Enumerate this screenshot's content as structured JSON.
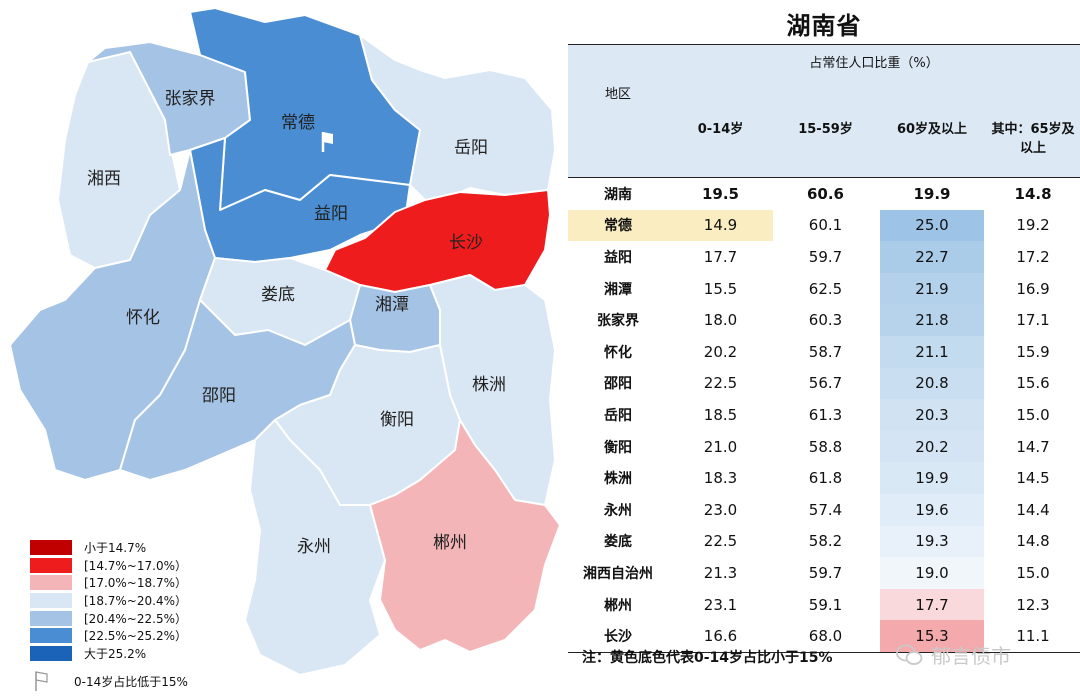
{
  "title": "湖南省",
  "header": {
    "group_label": "占常住人口比重（%）",
    "region_label": "地区",
    "col_0_14": "0-14岁",
    "col_15_59": "15-59岁",
    "col_60": "60岁及以上",
    "col_65_line1": "其中：65岁及",
    "col_65_line2": "以上"
  },
  "rows": [
    {
      "region": "湖南",
      "a": "19.5",
      "b": "60.6",
      "c": "19.9",
      "d": "14.8",
      "total": true,
      "c_color": "#ffffff"
    },
    {
      "region": "常德",
      "a": "14.9",
      "b": "60.1",
      "c": "25.0",
      "d": "19.2",
      "highlight": true,
      "c_color": "#9dc3e6"
    },
    {
      "region": "益阳",
      "a": "17.7",
      "b": "59.7",
      "c": "22.7",
      "d": "17.2",
      "c_color": "#aacce9"
    },
    {
      "region": "湘潭",
      "a": "15.5",
      "b": "62.5",
      "c": "21.9",
      "d": "16.9",
      "c_color": "#b4d1ec"
    },
    {
      "region": "张家界",
      "a": "18.0",
      "b": "60.3",
      "c": "21.8",
      "d": "17.1",
      "c_color": "#b7d3ec"
    },
    {
      "region": "怀化",
      "a": "20.2",
      "b": "58.7",
      "c": "21.1",
      "d": "15.9",
      "c_color": "#c3dbef"
    },
    {
      "region": "邵阳",
      "a": "22.5",
      "b": "56.7",
      "c": "20.8",
      "d": "15.6",
      "c_color": "#c9def1"
    },
    {
      "region": "岳阳",
      "a": "18.5",
      "b": "61.3",
      "c": "20.3",
      "d": "15.0",
      "c_color": "#d1e3f3"
    },
    {
      "region": "衡阳",
      "a": "21.0",
      "b": "58.8",
      "c": "20.2",
      "d": "14.7",
      "c_color": "#d4e4f4"
    },
    {
      "region": "株洲",
      "a": "18.3",
      "b": "61.8",
      "c": "19.9",
      "d": "14.5",
      "c_color": "#d9e8f5"
    },
    {
      "region": "永州",
      "a": "23.0",
      "b": "57.4",
      "c": "19.6",
      "d": "14.4",
      "c_color": "#e0ecf7"
    },
    {
      "region": "娄底",
      "a": "22.5",
      "b": "58.2",
      "c": "19.3",
      "d": "14.8",
      "c_color": "#e8f0f9"
    },
    {
      "region": "湘西自治州",
      "a": "21.3",
      "b": "59.7",
      "c": "19.0",
      "d": "15.0",
      "c_color": "#f1f6fb"
    },
    {
      "region": "郴州",
      "a": "23.1",
      "b": "59.1",
      "c": "17.7",
      "d": "12.3",
      "c_color": "#f9d9dc"
    },
    {
      "region": "长沙",
      "a": "16.6",
      "b": "68.0",
      "c": "15.3",
      "d": "11.1",
      "c_color": "#f4a9ad"
    }
  ],
  "footnote": "注：黄色底色代表0-14岁占比小于15%",
  "watermark": "郁言债市",
  "legend": {
    "items": [
      {
        "label": "小于14.7%",
        "color": "#c00000"
      },
      {
        "label": "[14.7%~17.0%）",
        "color": "#ee1c1c"
      },
      {
        "label": "[17.0%~18.7%）",
        "color": "#f4b5b8"
      },
      {
        "label": "[18.7%~20.4%）",
        "color": "#d9e6f3"
      },
      {
        "label": "[20.4%~22.5%）",
        "color": "#a5c3e4"
      },
      {
        "label": "[22.5%~25.2%）",
        "color": "#4a8dd2"
      },
      {
        "label": "大于25.2%",
        "color": "#1a63b8"
      }
    ],
    "flag_note": "0-14岁占比低于15%"
  },
  "map_labels": {
    "zhangjiajie": "张家界",
    "changde": "常德",
    "yueyang": "岳阳",
    "xiangxi": "湘西",
    "yiyang": "益阳",
    "changsha": "长沙",
    "loudi": "娄底",
    "xiangtan": "湘潭",
    "huaihua": "怀化",
    "shaoyang": "邵阳",
    "zhuzhou": "株洲",
    "hengyang": "衡阳",
    "yongzhou": "永州",
    "chenzhou": "郴州"
  },
  "map_colors": {
    "changde": "#4a8dd2",
    "yiyang": "#4a8dd2",
    "zhangjiajie": "#a5c3e4",
    "xiangxi": "#d9e6f3",
    "yueyang": "#d9e6f3",
    "changsha": "#ee1c1c",
    "loudi": "#d9e6f3",
    "xiangtan": "#a5c3e4",
    "huaihua": "#a5c3e4",
    "shaoyang": "#a5c3e4",
    "zhuzhou": "#d9e6f3",
    "hengyang": "#d9e6f3",
    "yongzhou": "#d9e6f3",
    "chenzhou": "#f4b5b8"
  },
  "chart_data": {
    "type": "table",
    "title": "湖南省",
    "columns": [
      "地区",
      "0-14岁",
      "15-59岁",
      "60岁及以上",
      "其中：65岁及以上"
    ],
    "rows": [
      [
        "湖南",
        19.5,
        60.6,
        19.9,
        14.8
      ],
      [
        "常德",
        14.9,
        60.1,
        25.0,
        19.2
      ],
      [
        "益阳",
        17.7,
        59.7,
        22.7,
        17.2
      ],
      [
        "湘潭",
        15.5,
        62.5,
        21.9,
        16.9
      ],
      [
        "张家界",
        18.0,
        60.3,
        21.8,
        17.1
      ],
      [
        "怀化",
        20.2,
        58.7,
        21.1,
        15.9
      ],
      [
        "邵阳",
        22.5,
        56.7,
        20.8,
        15.6
      ],
      [
        "岳阳",
        18.5,
        61.3,
        20.3,
        15.0
      ],
      [
        "衡阳",
        21.0,
        58.8,
        20.2,
        14.7
      ],
      [
        "株洲",
        18.3,
        61.8,
        19.9,
        14.5
      ],
      [
        "永州",
        23.0,
        57.4,
        19.6,
        14.4
      ],
      [
        "娄底",
        22.5,
        58.2,
        19.3,
        14.8
      ],
      [
        "湘西自治州",
        21.3,
        59.7,
        19.0,
        15.0
      ],
      [
        "郴州",
        23.1,
        59.1,
        17.7,
        12.3
      ],
      [
        "长沙",
        16.6,
        68.0,
        15.3,
        11.1
      ]
    ]
  }
}
